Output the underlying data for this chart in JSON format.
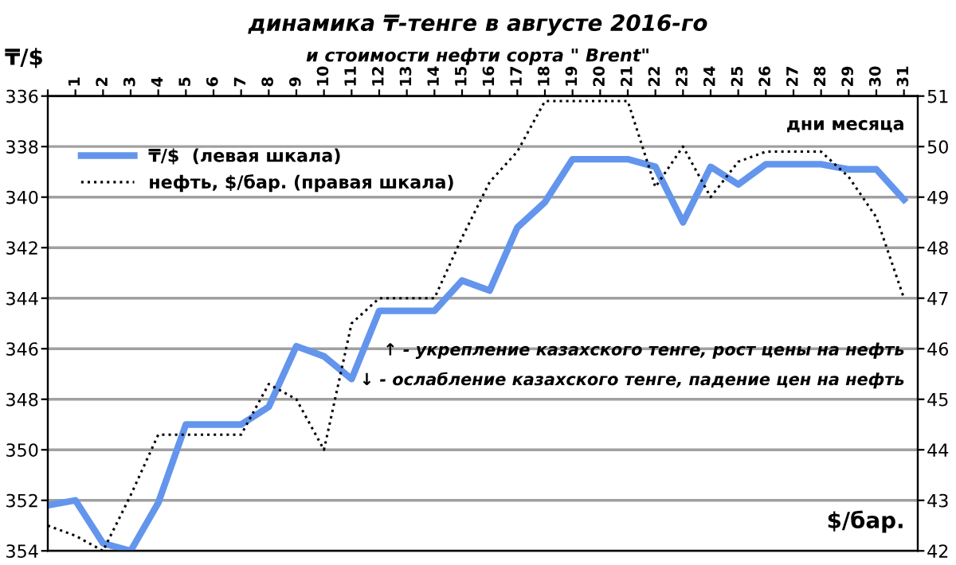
{
  "chart_data": {
    "type": "line",
    "title": "динамика ₸-тенге в августе 2016-го",
    "subtitle": "и стоимости нефти сорта \" Brent\"",
    "ylabel": "₸/$",
    "y2label": "$/бар.",
    "xlabel": "дни месяца",
    "categories": [
      null,
      "1",
      "2",
      "3",
      "4",
      "5",
      "6",
      "7",
      "8",
      "9",
      "10",
      "11",
      "12",
      "13",
      "14",
      "15",
      "16",
      "17",
      "18",
      "19",
      "20",
      "21",
      "22",
      "23",
      "24",
      "25",
      "26",
      "27",
      "28",
      "29",
      "30",
      "31"
    ],
    "series": [
      {
        "name": "₸/$  (левая шкала)",
        "color": "#6495ed",
        "line_style": "solid",
        "values": [
          352.2,
          352.0,
          353.7,
          354.0,
          352.1,
          349.0,
          349.0,
          349.0,
          348.3,
          345.9,
          346.3,
          347.2,
          344.5,
          344.5,
          344.5,
          343.3,
          343.7,
          341.2,
          340.2,
          338.5,
          338.5,
          338.5,
          338.8,
          341.0,
          338.8,
          339.5,
          338.7,
          338.7,
          338.7,
          338.9,
          338.9,
          340.1
        ]
      },
      {
        "name": "нефть, $/бар. (правая шкала)",
        "color": "#000000",
        "line_style": "dotted",
        "axis": "y2",
        "values": [
          42.5,
          42.3,
          42.0,
          43.1,
          44.3,
          44.3,
          44.3,
          44.3,
          45.3,
          45.0,
          44.0,
          46.5,
          47.0,
          47.0,
          47.0,
          48.2,
          49.3,
          49.9,
          50.9,
          50.9,
          50.9,
          50.9,
          49.2,
          50.0,
          49.0,
          49.7,
          49.9,
          49.9,
          49.9,
          49.4,
          48.6,
          47.0
        ]
      }
    ],
    "ylim": [
      354,
      336
    ],
    "yticks": [
      336,
      338,
      340,
      342,
      344,
      346,
      348,
      350,
      352,
      354
    ],
    "y2lim": [
      42,
      51
    ],
    "y2ticks": [
      42,
      43,
      44,
      45,
      46,
      47,
      48,
      49,
      50,
      51
    ],
    "grid": "y",
    "legend": "top left",
    "marker": "none",
    "annotations": [
      "↑ - укрепление казахского тенге, рост цены на нефть",
      "↓ - ослабление казахского тенге, падение цен на нефть"
    ]
  }
}
